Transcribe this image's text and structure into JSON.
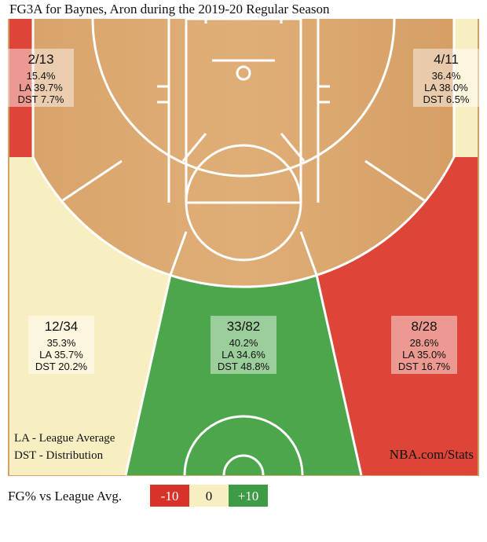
{
  "title": "FG3A for Baynes, Aron during the 2019-20 Regular Season",
  "zones": [
    {
      "fraction": "2/13",
      "pct": "15.4%",
      "la": "LA 39.7%",
      "dst": "DST 7.7%"
    },
    {
      "fraction": "4/11",
      "pct": "36.4%",
      "la": "LA 38.0%",
      "dst": "DST 6.5%"
    },
    {
      "fraction": "12/34",
      "pct": "35.3%",
      "la": "LA 35.7%",
      "dst": "DST 20.2%"
    },
    {
      "fraction": "33/82",
      "pct": "40.2%",
      "la": "LA 34.6%",
      "dst": "DST 48.8%"
    },
    {
      "fraction": "8/28",
      "pct": "28.6%",
      "la": "LA 35.0%",
      "dst": "DST 16.7%"
    }
  ],
  "notes": [
    "LA - League Average",
    "DST - Distribution"
  ],
  "source": "NBA.com/Stats",
  "legend": {
    "label": "FG% vs League Avg.",
    "items": [
      "-10",
      "0",
      "+10"
    ]
  }
}
